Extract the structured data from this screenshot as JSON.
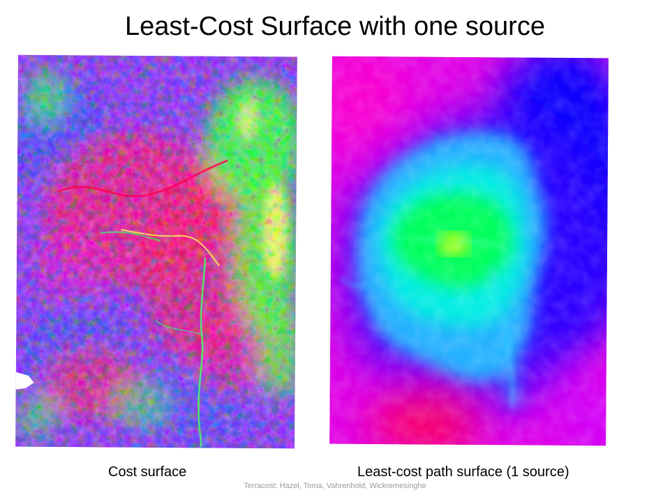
{
  "slide": {
    "title": "Least-Cost Surface with one source",
    "footer": "Terracost: Hazel, Toma, Vahrenhold, Wickremesinghe"
  },
  "panels": {
    "cost_surface": {
      "caption": "Cost surface",
      "palette": [
        "#ff0066",
        "#d000ff",
        "#7a22ff",
        "#2a2aff",
        "#2cff2c",
        "#ffff55"
      ]
    },
    "least_cost_path": {
      "caption": "Least-cost path surface (1 source)",
      "palette": [
        "#ff0044",
        "#ff00cc",
        "#9900ff",
        "#0000ff",
        "#00e5ff",
        "#00ff44",
        "#ffff00"
      ]
    }
  }
}
